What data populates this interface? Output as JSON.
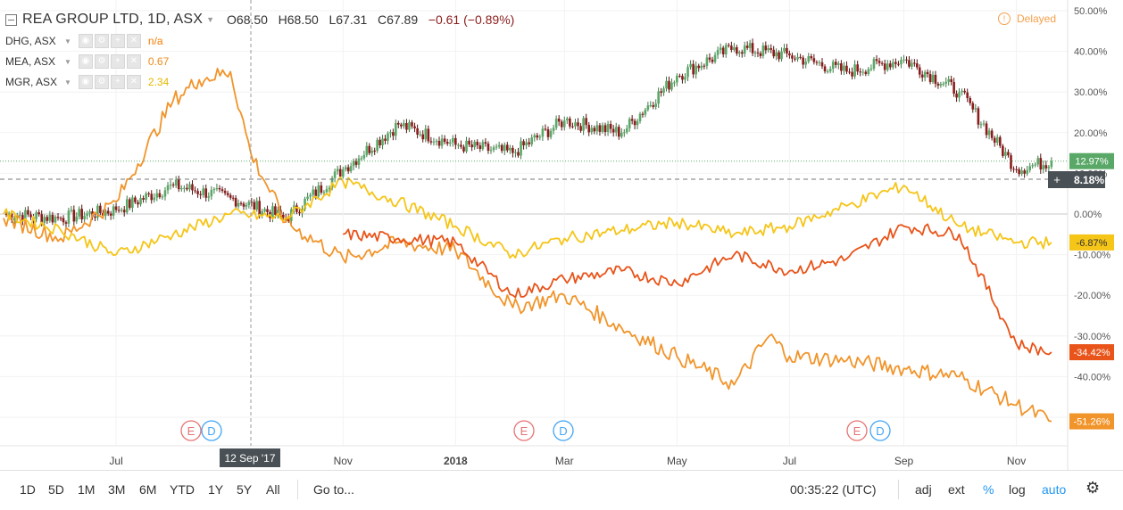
{
  "header": {
    "symbol": "REA GROUP LTD, 1D, ASX",
    "open": "O68.50",
    "high": "H68.50",
    "low": "L67.31",
    "close": "C67.89",
    "change": "−0.61 (−0.89%)"
  },
  "compare": [
    {
      "name": "DHG, ASX",
      "value": "n/a",
      "color": "#f57c00"
    },
    {
      "name": "MEA, ASX",
      "value": "0.67",
      "color": "#ef8b1a"
    },
    {
      "name": "MGR, ASX",
      "value": "2.34",
      "color": "#f5c400"
    }
  ],
  "delayed": {
    "label": "Delayed",
    "icon": "info-icon"
  },
  "crosshair": {
    "date_label": "12 Sep '17",
    "price_label": "8.18%"
  },
  "toolbar": {
    "ranges": [
      "1D",
      "5D",
      "1M",
      "3M",
      "6M",
      "YTD",
      "1Y",
      "5Y",
      "All"
    ],
    "goto": "Go to...",
    "time": "00:35:22 (UTC)",
    "options": [
      "adj",
      "ext",
      "%",
      "log",
      "auto"
    ]
  },
  "chart_data": {
    "type": "line",
    "y_unit": "%",
    "ylim": [
      -52,
      52
    ],
    "y_ticks": [
      "50.00%",
      "40.00%",
      "30.00%",
      "20.00%",
      "10.00%",
      "0.00%",
      "-10.00%",
      "-20.00%",
      "-30.00%",
      "-40.00%",
      "-50.00%"
    ],
    "x_ticks": [
      "Jul",
      "Nov",
      "2018",
      "Mar",
      "May",
      "Jul",
      "Sep",
      "Nov"
    ],
    "events": [
      "E",
      "D",
      "E",
      "D",
      "E",
      "D"
    ],
    "series": [
      {
        "name": "REA GROUP LTD",
        "style": "candles",
        "color_up": "#5aa867",
        "color_down": "#8b1c1c",
        "last_label": "12.97%",
        "x": [
          "2017-05-01",
          "2017-06-01",
          "2017-07-01",
          "2017-08-01",
          "2017-09-01",
          "2017-10-01",
          "2017-11-01",
          "2017-12-01",
          "2018-01-01",
          "2018-02-01",
          "2018-03-01",
          "2018-04-01",
          "2018-05-01",
          "2018-06-01",
          "2018-07-01",
          "2018-08-01",
          "2018-09-01",
          "2018-10-01",
          "2018-11-01",
          "2018-11-20"
        ],
        "values": [
          0,
          -1,
          1,
          7,
          4,
          -1,
          11,
          22,
          17,
          15,
          23,
          20,
          34,
          41,
          39,
          35,
          38,
          30,
          11,
          13
        ]
      },
      {
        "name": "DHG, ASX",
        "style": "line",
        "color": "#f1942a",
        "last_label": "-51.26%",
        "x": [
          "2017-05-01",
          "2017-06-01",
          "2017-07-01",
          "2017-08-01",
          "2017-08-15",
          "2017-09-01",
          "2017-09-12",
          "2017-10-01",
          "2017-11-01",
          "2017-12-01",
          "2018-01-01",
          "2018-02-01",
          "2018-03-01",
          "2018-04-01",
          "2018-05-01",
          "2018-06-01",
          "2018-06-20",
          "2018-07-01",
          "2018-08-01",
          "2018-09-01",
          "2018-10-01",
          "2018-11-01",
          "2018-11-20"
        ],
        "values": [
          -1,
          -6,
          3,
          28,
          33,
          35,
          15,
          -2,
          -11,
          -7,
          -9,
          -23,
          -20,
          -28,
          -35,
          -42,
          -30,
          -35,
          -36,
          -38,
          -40,
          -47,
          -51
        ]
      },
      {
        "name": "MEA, ASX",
        "style": "line",
        "color": "#e8541a",
        "last_label": "-34.42%",
        "x": [
          "2017-11-01",
          "2017-12-01",
          "2018-01-01",
          "2018-02-01",
          "2018-03-01",
          "2018-04-01",
          "2018-05-01",
          "2018-06-01",
          "2018-07-01",
          "2018-08-01",
          "2018-09-01",
          "2018-10-01",
          "2018-11-01",
          "2018-11-20"
        ],
        "values": [
          -5,
          -6,
          -7,
          -20,
          -16,
          -14,
          -17,
          -10,
          -14,
          -11,
          -3,
          -5,
          -32,
          -34
        ]
      },
      {
        "name": "MGR, ASX",
        "style": "line",
        "color": "#f5c518",
        "last_label": "-6.87%",
        "x": [
          "2017-05-01",
          "2017-06-01",
          "2017-07-01",
          "2017-08-01",
          "2017-09-01",
          "2017-10-01",
          "2017-11-01",
          "2017-12-01",
          "2018-01-01",
          "2018-02-01",
          "2018-03-01",
          "2018-04-01",
          "2018-05-01",
          "2018-06-01",
          "2018-07-01",
          "2018-08-01",
          "2018-09-01",
          "2018-10-01",
          "2018-11-01",
          "2018-11-20"
        ],
        "values": [
          0,
          -4,
          -10,
          -5,
          0,
          -1,
          8,
          3,
          -3,
          -10,
          -6,
          -4,
          -2,
          -5,
          -3,
          2,
          7,
          -3,
          -7,
          -7
        ]
      }
    ]
  }
}
